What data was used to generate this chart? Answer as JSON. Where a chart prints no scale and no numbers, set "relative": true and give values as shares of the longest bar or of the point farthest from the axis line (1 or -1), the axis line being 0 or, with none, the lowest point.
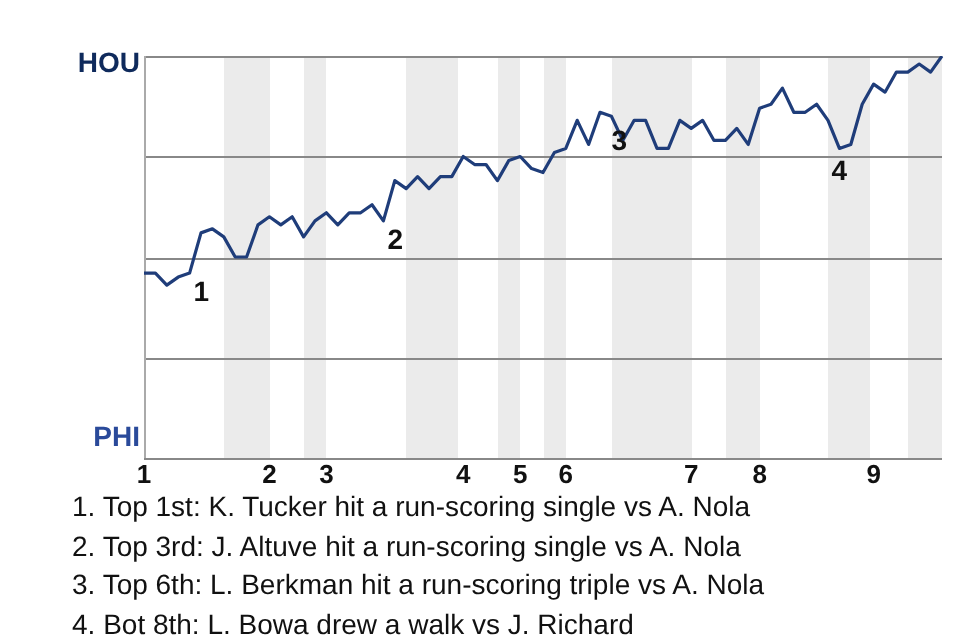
{
  "chart_data": {
    "type": "line",
    "relative": true,
    "categories": [
      "1",
      null,
      null,
      null,
      null,
      null,
      null,
      null,
      null,
      null,
      null,
      "2",
      null,
      null,
      null,
      null,
      "3",
      null,
      null,
      null,
      null,
      null,
      null,
      null,
      null,
      null,
      null,
      null,
      "4",
      null,
      null,
      null,
      null,
      "5",
      null,
      null,
      null,
      "6",
      null,
      null,
      null,
      null,
      null,
      null,
      null,
      null,
      null,
      null,
      "7",
      null,
      null,
      null,
      null,
      null,
      "8",
      null,
      null,
      null,
      null,
      null,
      null,
      null,
      null,
      null,
      "9",
      null,
      null,
      null,
      null,
      null,
      null
    ],
    "series": [
      {
        "color": "#1f3d7a",
        "values": [
          0.46,
          0.46,
          0.43,
          0.45,
          0.46,
          0.56,
          0.57,
          0.55,
          0.5,
          0.5,
          0.58,
          0.6,
          0.58,
          0.6,
          0.55,
          0.59,
          0.61,
          0.58,
          0.61,
          0.61,
          0.63,
          0.59,
          0.69,
          0.67,
          0.7,
          0.67,
          0.7,
          0.7,
          0.75,
          0.73,
          0.73,
          0.69,
          0.74,
          0.75,
          0.72,
          0.71,
          0.76,
          0.77,
          0.84,
          0.78,
          0.86,
          0.85,
          0.79,
          0.84,
          0.84,
          0.77,
          0.77,
          0.84,
          0.82,
          0.84,
          0.79,
          0.79,
          0.82,
          0.78,
          0.87,
          0.88,
          0.92,
          0.86,
          0.86,
          0.88,
          0.84,
          0.77,
          0.78,
          0.88,
          0.93,
          0.91,
          0.96,
          0.96,
          0.98,
          0.96,
          1
        ]
      }
    ],
    "grid": "y",
    "legend": false,
    "marker": "none",
    "line_style": "solid",
    "annotations": [
      "HOU",
      "PHI",
      "1",
      "2",
      "3",
      "4",
      "1. Top 1st: K. Tucker hit a run-scoring single vs A. Nola",
      "2. Top 3rd: J. Altuve hit a run-scoring single vs A. Nola",
      "3. Top 6th: L. Berkman hit a run-scoring triple vs A. Nola",
      "4. Bot 8th: L. Bowa drew a walk vs J. Richard"
    ]
  }
}
